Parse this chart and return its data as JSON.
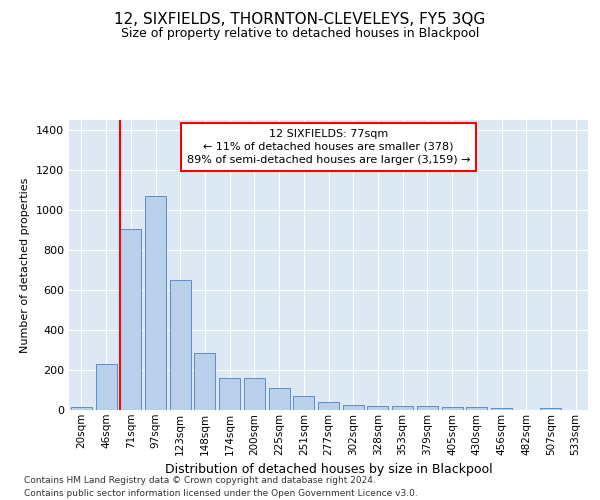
{
  "title": "12, SIXFIELDS, THORNTON-CLEVELEYS, FY5 3QG",
  "subtitle": "Size of property relative to detached houses in Blackpool",
  "xlabel": "Distribution of detached houses by size in Blackpool",
  "ylabel": "Number of detached properties",
  "bar_labels": [
    "20sqm",
    "46sqm",
    "71sqm",
    "97sqm",
    "123sqm",
    "148sqm",
    "174sqm",
    "200sqm",
    "225sqm",
    "251sqm",
    "277sqm",
    "302sqm",
    "328sqm",
    "353sqm",
    "379sqm",
    "405sqm",
    "430sqm",
    "456sqm",
    "482sqm",
    "507sqm",
    "533sqm"
  ],
  "bar_values": [
    15,
    228,
    905,
    1068,
    650,
    285,
    158,
    158,
    108,
    68,
    40,
    25,
    20,
    18,
    18,
    15,
    15,
    10,
    0,
    10,
    0
  ],
  "bar_color": "#b8d0ea",
  "bar_edge_color": "#5b8dc8",
  "red_line_index": 2,
  "annotation_line1": "12 SIXFIELDS: 77sqm",
  "annotation_line2": "← 11% of detached houses are smaller (378)",
  "annotation_line3": "89% of semi-detached houses are larger (3,159) →",
  "annotation_box_color": "white",
  "annotation_box_edge_color": "red",
  "red_line_color": "red",
  "ylim": [
    0,
    1450
  ],
  "yticks": [
    0,
    200,
    400,
    600,
    800,
    1000,
    1200,
    1400
  ],
  "background_color": "#dde8f5",
  "grid_color": "white",
  "footer_line1": "Contains HM Land Registry data © Crown copyright and database right 2024.",
  "footer_line2": "Contains public sector information licensed under the Open Government Licence v3.0."
}
